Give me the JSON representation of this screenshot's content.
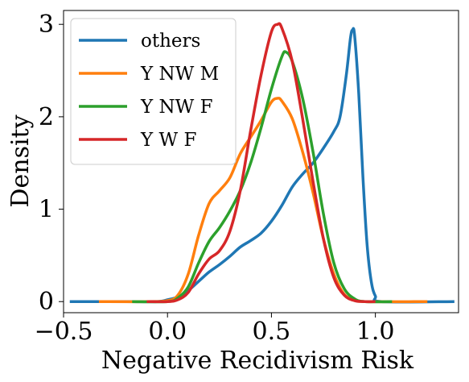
{
  "chart_data": {
    "type": "line",
    "title": "",
    "xlabel": "Negative Recidivism Risk",
    "ylabel": "Density",
    "xlim": [
      -0.5,
      1.4
    ],
    "ylim": [
      -0.12,
      3.15
    ],
    "x_ticks": [
      -0.5,
      0.0,
      0.5,
      1.0
    ],
    "x_tick_labels": [
      "−0.5",
      "0.0",
      "0.5",
      "1.0"
    ],
    "y_ticks": [
      0,
      1,
      2,
      3
    ],
    "y_tick_labels": [
      "0",
      "1",
      "2",
      "3"
    ],
    "grid": false,
    "legend_position": "top-left",
    "series": [
      {
        "name": "others",
        "color": "#1f77b4",
        "points": [
          [
            -0.47,
            0.0
          ],
          [
            -0.2,
            0.0
          ],
          [
            -0.05,
            0.0
          ],
          [
            0.0,
            0.02
          ],
          [
            0.05,
            0.05
          ],
          [
            0.1,
            0.12
          ],
          [
            0.15,
            0.22
          ],
          [
            0.2,
            0.32
          ],
          [
            0.25,
            0.4
          ],
          [
            0.3,
            0.49
          ],
          [
            0.35,
            0.59
          ],
          [
            0.4,
            0.66
          ],
          [
            0.45,
            0.74
          ],
          [
            0.5,
            0.87
          ],
          [
            0.55,
            1.04
          ],
          [
            0.6,
            1.24
          ],
          [
            0.65,
            1.38
          ],
          [
            0.7,
            1.5
          ],
          [
            0.75,
            1.66
          ],
          [
            0.8,
            1.84
          ],
          [
            0.83,
            2.0
          ],
          [
            0.86,
            2.45
          ],
          [
            0.88,
            2.85
          ],
          [
            0.89,
            2.94
          ],
          [
            0.9,
            2.88
          ],
          [
            0.92,
            2.25
          ],
          [
            0.94,
            1.35
          ],
          [
            0.96,
            0.62
          ],
          [
            0.98,
            0.22
          ],
          [
            1.0,
            0.06
          ],
          [
            1.03,
            0.0
          ],
          [
            1.38,
            0.0
          ]
        ]
      },
      {
        "name": "Y NW M",
        "color": "#ff7f0e",
        "points": [
          [
            -0.33,
            0.0
          ],
          [
            -0.1,
            0.0
          ],
          [
            0.0,
            0.01
          ],
          [
            0.05,
            0.07
          ],
          [
            0.1,
            0.3
          ],
          [
            0.15,
            0.72
          ],
          [
            0.2,
            1.06
          ],
          [
            0.25,
            1.2
          ],
          [
            0.3,
            1.34
          ],
          [
            0.35,
            1.6
          ],
          [
            0.4,
            1.78
          ],
          [
            0.45,
            1.96
          ],
          [
            0.5,
            2.16
          ],
          [
            0.53,
            2.2
          ],
          [
            0.55,
            2.17
          ],
          [
            0.6,
            1.98
          ],
          [
            0.65,
            1.62
          ],
          [
            0.7,
            1.18
          ],
          [
            0.75,
            0.68
          ],
          [
            0.8,
            0.3
          ],
          [
            0.85,
            0.08
          ],
          [
            0.9,
            0.02
          ],
          [
            0.95,
            0.0
          ],
          [
            1.25,
            0.0
          ]
        ]
      },
      {
        "name": "Y NW F",
        "color": "#2ca02c",
        "points": [
          [
            -0.17,
            0.0
          ],
          [
            0.0,
            0.0
          ],
          [
            0.05,
            0.04
          ],
          [
            0.1,
            0.16
          ],
          [
            0.15,
            0.42
          ],
          [
            0.2,
            0.65
          ],
          [
            0.25,
            0.8
          ],
          [
            0.3,
            0.98
          ],
          [
            0.35,
            1.2
          ],
          [
            0.4,
            1.5
          ],
          [
            0.45,
            1.88
          ],
          [
            0.5,
            2.3
          ],
          [
            0.55,
            2.65
          ],
          [
            0.57,
            2.7
          ],
          [
            0.6,
            2.6
          ],
          [
            0.65,
            2.2
          ],
          [
            0.7,
            1.62
          ],
          [
            0.75,
            0.95
          ],
          [
            0.8,
            0.42
          ],
          [
            0.85,
            0.14
          ],
          [
            0.9,
            0.03
          ],
          [
            0.95,
            0.0
          ],
          [
            1.08,
            0.0
          ]
        ]
      },
      {
        "name": "Y W F",
        "color": "#d62728",
        "points": [
          [
            -0.1,
            0.0
          ],
          [
            0.0,
            0.0
          ],
          [
            0.05,
            0.02
          ],
          [
            0.1,
            0.1
          ],
          [
            0.15,
            0.3
          ],
          [
            0.2,
            0.46
          ],
          [
            0.25,
            0.55
          ],
          [
            0.3,
            0.76
          ],
          [
            0.35,
            1.2
          ],
          [
            0.4,
            1.85
          ],
          [
            0.45,
            2.45
          ],
          [
            0.5,
            2.92
          ],
          [
            0.53,
            3.0
          ],
          [
            0.55,
            2.96
          ],
          [
            0.6,
            2.6
          ],
          [
            0.65,
            1.98
          ],
          [
            0.7,
            1.3
          ],
          [
            0.75,
            0.68
          ],
          [
            0.8,
            0.26
          ],
          [
            0.85,
            0.07
          ],
          [
            0.9,
            0.01
          ],
          [
            0.95,
            0.0
          ],
          [
            1.0,
            0.0
          ]
        ]
      }
    ]
  }
}
